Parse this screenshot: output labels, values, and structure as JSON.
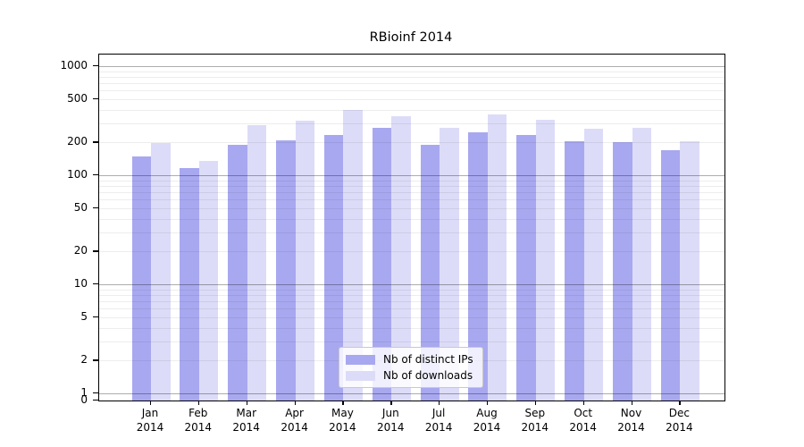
{
  "title": "RBioinf 2014",
  "chart_data": {
    "type": "bar",
    "title": "RBioinf 2014",
    "categories": [
      "Jan 2014",
      "Feb 2014",
      "Mar 2014",
      "Apr 2014",
      "May 2014",
      "Jun 2014",
      "Jul 2014",
      "Aug 2014",
      "Sep 2014",
      "Oct 2014",
      "Nov 2014",
      "Dec 2014"
    ],
    "series": [
      {
        "name": "Nb of distinct IPs",
        "color": "#a8a8f0",
        "values": [
          150,
          117,
          190,
          210,
          233,
          272,
          191,
          250,
          235,
          205,
          200,
          170
        ]
      },
      {
        "name": "Nb of downloads",
        "color": "#dcdcf8",
        "values": [
          197,
          135,
          290,
          315,
          400,
          350,
          270,
          363,
          325,
          266,
          270,
          207
        ]
      }
    ],
    "yscale": "log",
    "y_tick_labels": [
      "1000",
      "500",
      "200",
      "100",
      "50",
      "20",
      "10",
      "5",
      "2",
      "1",
      "0"
    ],
    "y_tick_values": [
      1000,
      500,
      200,
      100,
      50,
      20,
      10,
      5,
      2,
      1,
      0
    ],
    "grid": {
      "major_at": [
        1,
        10,
        100,
        1000
      ],
      "minor": "multiples 2-9 of each decade"
    },
    "legend_position": "lower center"
  },
  "colors": {
    "axis": "#000000",
    "major_grid": "rgba(0,0,0,0.32)",
    "minor_grid": "rgba(0,0,0,0.07)",
    "legend_border": "#c9c9c9"
  }
}
